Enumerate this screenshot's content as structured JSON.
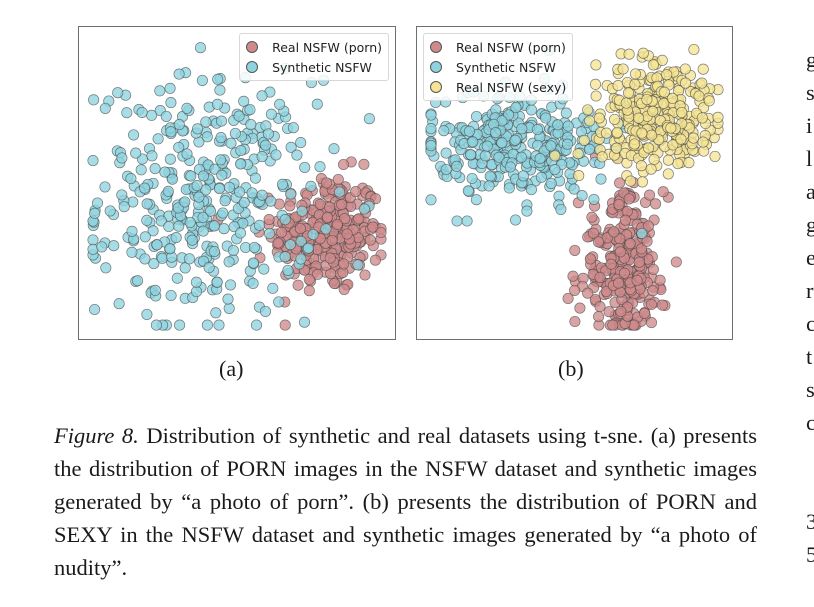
{
  "figure": {
    "subfig_a_label": "(a)",
    "subfig_b_label": "(b)",
    "caption_label": "Figure 8.",
    "caption_text": "Distribution of synthetic and real datasets using t-sne. (a) presents the distribution of PORN images in the NSFW dataset and synthetic images generated by “a photo of porn”. (b) presents the distribution of PORN and SEXY in the NSFW dataset and synthetic images generated by “a photo of nudity”."
  },
  "right_column_fragments": [
    "g",
    "s",
    "i",
    "l",
    "a",
    "g",
    "e",
    "r",
    "c",
    "t",
    "s",
    "c",
    "3",
    "5"
  ],
  "colors": {
    "real_porn": "#d08a8c",
    "synthetic": "#8ed3df",
    "real_sexy": "#f5e493",
    "marker_edge": "#4a4a4a"
  },
  "chart_data": [
    {
      "type": "scatter",
      "panel": "(a)",
      "legend_placement": "top-right",
      "grid": false,
      "xlim": [
        0,
        100
      ],
      "ylim": [
        0,
        100
      ],
      "series": [
        {
          "name": "Real NSFW (porn)",
          "color": "#d08a8c",
          "center": [
            80,
            33
          ],
          "spread": [
            9,
            10
          ],
          "count": 300
        },
        {
          "name": "Synthetic NSFW",
          "color": "#8ed3df",
          "center": [
            40,
            45
          ],
          "spread": [
            18,
            20
          ],
          "count": 380
        }
      ]
    },
    {
      "type": "scatter",
      "panel": "(b)",
      "legend_placement": "top-left",
      "grid": false,
      "xlim": [
        0,
        100
      ],
      "ylim": [
        0,
        100
      ],
      "series": [
        {
          "name": "Real NSFW (porn)",
          "color": "#d08a8c",
          "center": [
            66,
            22
          ],
          "spread": [
            7,
            12
          ],
          "count": 300
        },
        {
          "name": "Synthetic NSFW",
          "color": "#8ed3df",
          "center": [
            32,
            63
          ],
          "spread": [
            15,
            9
          ],
          "count": 330
        },
        {
          "name": "Real NSFW (sexy)",
          "color": "#f5e493",
          "center": [
            77,
            72
          ],
          "spread": [
            10,
            9
          ],
          "count": 330
        }
      ]
    }
  ]
}
